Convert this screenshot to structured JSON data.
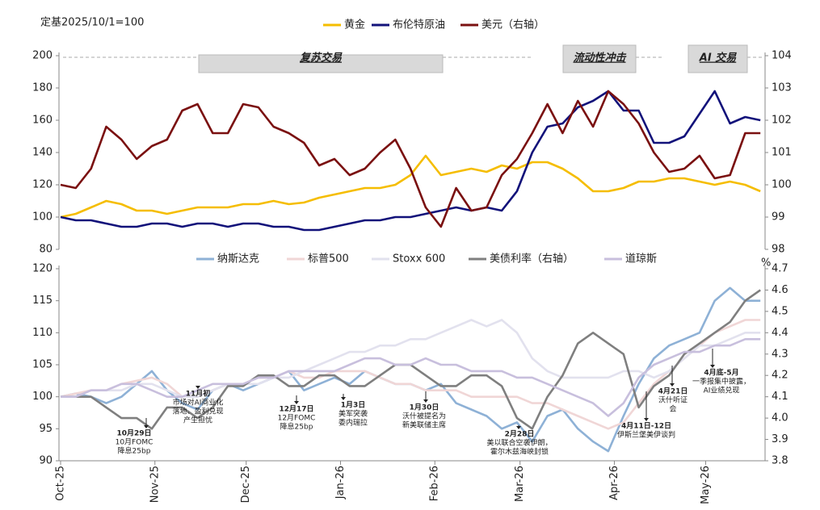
{
  "chart_data": [
    {
      "type": "line",
      "y_label": "定基2025/10/1=100",
      "x": [
        0,
        5,
        10,
        15,
        20,
        25,
        30,
        35,
        40,
        45,
        50,
        55,
        60,
        65,
        70,
        75,
        80,
        85,
        90,
        95,
        100,
        105,
        110,
        115,
        120,
        125,
        130,
        135,
        140,
        145,
        150,
        155,
        160,
        165,
        170,
        175,
        180,
        185,
        190,
        195,
        200,
        205,
        210,
        215,
        220,
        225,
        230
      ],
      "xlim": [
        0,
        231
      ],
      "ylim": [
        80,
        200
      ],
      "yticks": [
        80,
        100,
        120,
        140,
        160,
        180,
        200
      ],
      "y2lim": [
        98,
        104
      ],
      "y2ticks": [
        98,
        99,
        100,
        101,
        102,
        103,
        104
      ],
      "legend": "top",
      "series": [
        {
          "name": "黄金",
          "color": "#f5bd00",
          "values": [
            100,
            102,
            106,
            110,
            108,
            104,
            104,
            102,
            104,
            106,
            106,
            106,
            108,
            108,
            110,
            108,
            109,
            112,
            114,
            116,
            118,
            118,
            120,
            126,
            138,
            126,
            128,
            130,
            128,
            132,
            130,
            134,
            134,
            130,
            124,
            116,
            116,
            118,
            122,
            122,
            124,
            124,
            122,
            120,
            122,
            120,
            116
          ]
        },
        {
          "name": "布伦特原油",
          "color": "#12127a",
          "values": [
            100,
            98,
            98,
            96,
            94,
            94,
            96,
            96,
            94,
            96,
            96,
            94,
            96,
            96,
            94,
            94,
            92,
            92,
            94,
            96,
            98,
            98,
            100,
            100,
            102,
            104,
            106,
            104,
            106,
            104,
            116,
            140,
            156,
            158,
            168,
            172,
            178,
            166,
            166,
            146,
            146,
            150,
            164,
            178,
            158,
            162,
            160
          ]
        },
        {
          "name": "美元（右轴）",
          "color": "#7a1010",
          "axis": "y2",
          "values": [
            100.0,
            99.9,
            100.5,
            101.8,
            101.4,
            100.8,
            101.2,
            101.4,
            102.3,
            102.5,
            101.6,
            101.6,
            102.5,
            102.4,
            101.8,
            101.6,
            101.3,
            100.6,
            100.8,
            100.3,
            100.5,
            101.0,
            101.4,
            100.5,
            99.3,
            98.7,
            99.9,
            99.2,
            99.3,
            100.3,
            100.8,
            101.6,
            102.5,
            101.6,
            102.6,
            101.8,
            102.9,
            102.5,
            101.9,
            101.0,
            100.4,
            100.5,
            100.9,
            100.2,
            100.3,
            101.6,
            101.6
          ]
        }
      ],
      "annotations": [
        {
          "label": "复苏交易"
        },
        {
          "label": "流动性冲击"
        },
        {
          "label": "AI 交易"
        }
      ]
    },
    {
      "type": "line",
      "y2_label": "%",
      "x": [
        0,
        5,
        10,
        15,
        20,
        25,
        30,
        35,
        40,
        45,
        50,
        55,
        60,
        65,
        70,
        75,
        80,
        85,
        90,
        95,
        100,
        105,
        110,
        115,
        120,
        125,
        130,
        135,
        140,
        145,
        150,
        155,
        160,
        165,
        170,
        175,
        180,
        185,
        190,
        195,
        200,
        205,
        210,
        215,
        220,
        225,
        230
      ],
      "xlim": [
        0,
        231
      ],
      "xticks": [
        {
          "value": 0,
          "label": "Oct-25"
        },
        {
          "value": 31,
          "label": "Nov-25"
        },
        {
          "value": 61,
          "label": "Dec-25"
        },
        {
          "value": 92,
          "label": "Jan-26"
        },
        {
          "value": 123,
          "label": "Feb-26"
        },
        {
          "value": 151,
          "label": "Mar-26"
        },
        {
          "value": 182,
          "label": "Apr-26"
        },
        {
          "value": 212,
          "label": "May-26"
        }
      ],
      "ylim": [
        90,
        120
      ],
      "yticks": [
        90,
        95,
        100,
        105,
        110,
        115,
        120
      ],
      "y2lim": [
        3.8,
        4.7
      ],
      "y2ticks": [
        3.8,
        3.9,
        {
          "value": 4.0,
          "label": "4.0"
        },
        4.1,
        4.2,
        4.3,
        4.4,
        4.5,
        4.6,
        4.7
      ],
      "legend": "top",
      "series": [
        {
          "name": "纳斯达克",
          "color": "#8eb1d6",
          "values": [
            100,
            100.5,
            100,
            99,
            100,
            102,
            104,
            101,
            99,
            98,
            101,
            102,
            101,
            102,
            103,
            104,
            101,
            102,
            103,
            102,
            104,
            103,
            102,
            102,
            101,
            102,
            99,
            98,
            97,
            95,
            96,
            93,
            97,
            98,
            95,
            93,
            91.5,
            97,
            102,
            106,
            108,
            109,
            110,
            115,
            117,
            115,
            115
          ]
        },
        {
          "name": "标普500",
          "color": "#f0d6d6",
          "values": [
            100,
            100.5,
            101,
            101,
            102,
            102.5,
            103,
            102,
            100,
            100,
            101,
            102,
            102,
            103,
            103,
            104,
            103,
            103,
            104,
            104,
            104,
            103,
            102,
            102,
            101,
            101,
            101,
            100,
            100,
            100,
            100,
            99,
            99,
            98,
            97,
            96,
            95,
            96,
            99,
            102,
            104,
            106,
            108,
            110,
            111,
            112,
            112
          ]
        },
        {
          "name": "Stoxx 600",
          "color": "#e2e1ee",
          "values": [
            100,
            100,
            101,
            101,
            101,
            102,
            102,
            101,
            100,
            100,
            101,
            102,
            102,
            102,
            103,
            103,
            104,
            105,
            106,
            107,
            107,
            108,
            108,
            109,
            109,
            110,
            111,
            112,
            111,
            112,
            110,
            106,
            104,
            103,
            103,
            103,
            103,
            104,
            104,
            103,
            104,
            106,
            108,
            108,
            109,
            110,
            110
          ]
        },
        {
          "name": "美债利率（右轴）",
          "color": "#7f7f7f",
          "axis": "y2",
          "values": [
            4.1,
            4.1,
            4.1,
            4.05,
            4.0,
            4.0,
            3.95,
            4.05,
            4.05,
            4.0,
            4.05,
            4.15,
            4.15,
            4.2,
            4.2,
            4.15,
            4.15,
            4.2,
            4.2,
            4.15,
            4.15,
            4.2,
            4.25,
            4.25,
            4.2,
            4.15,
            4.15,
            4.2,
            4.2,
            4.15,
            4.0,
            3.95,
            4.1,
            4.2,
            4.35,
            4.4,
            4.35,
            4.3,
            4.05,
            4.15,
            4.2,
            4.3,
            4.35,
            4.4,
            4.45,
            4.55,
            4.6
          ]
        },
        {
          "name": "道琼斯",
          "color": "#c8bfdd",
          "values": [
            100,
            100,
            101,
            101,
            102,
            102,
            101,
            100,
            100,
            101,
            102,
            102,
            102,
            103,
            103,
            104,
            104,
            104,
            104,
            105,
            106,
            106,
            105,
            105,
            106,
            105,
            105,
            104,
            104,
            104,
            103,
            103,
            102,
            101,
            100,
            99,
            97,
            99,
            103,
            105,
            106,
            107,
            107,
            108,
            108,
            109,
            109
          ]
        }
      ],
      "annotations": [
        {
          "title": "10月29日",
          "lines": [
            "10月FOMC",
            "降息25bp"
          ]
        },
        {
          "title": "11月初",
          "lines": [
            "市场对AI商业化",
            "落地、盈利兑现",
            "产生担忧"
          ]
        },
        {
          "title": "12月17日",
          "lines": [
            "12月FOMC",
            "降息25bp"
          ]
        },
        {
          "title": "1月3日",
          "lines": [
            "美军突袭",
            "委内瑞拉"
          ]
        },
        {
          "title": "1月30日",
          "lines": [
            "沃什被提名为",
            "新美联储主席"
          ]
        },
        {
          "title": "2月28日",
          "lines": [
            "美以联合空袭伊朗，",
            "霍尔木兹海峡封锁"
          ]
        },
        {
          "title": "4月11日-12日",
          "lines": [
            "伊斯兰堡美伊谈判"
          ]
        },
        {
          "title": "4月21日",
          "lines": [
            "沃什听证",
            "会"
          ]
        },
        {
          "title": "4月底-5月",
          "lines": [
            "一季报集中披露，",
            "AI业绩兑现"
          ]
        }
      ]
    }
  ]
}
